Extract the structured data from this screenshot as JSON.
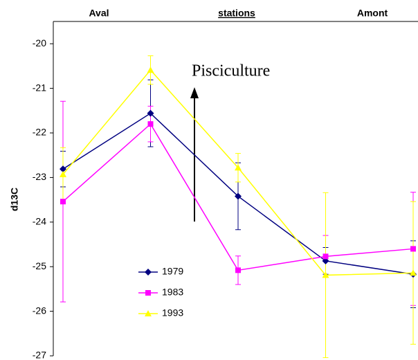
{
  "chart_data": {
    "type": "line",
    "y_label": "d13C",
    "annotations": [
      "Aval",
      "stations",
      "Amont",
      "Pisciculture"
    ],
    "categories": [
      null,
      null,
      null,
      null,
      null
    ],
    "ylim": [
      -27,
      -19.5
    ],
    "yticks": [
      -27,
      -26,
      -25,
      -24,
      -23,
      -22,
      -21,
      -20
    ],
    "series": [
      {
        "name": "1979",
        "color": "#000080",
        "marker": "diamond",
        "values": [
          -22.81,
          -21.56,
          -23.42,
          -24.87,
          -25.17
        ],
        "errors": [
          0.4,
          0.75,
          0.75,
          0.3,
          0.75
        ]
      },
      {
        "name": "1983",
        "color": "#ff00ff",
        "marker": "square",
        "values": [
          -23.54,
          -21.8,
          -25.08,
          -24.77,
          -24.6
        ],
        "errors": [
          2.25,
          0.4,
          0.32,
          0.47,
          1.27
        ]
      },
      {
        "name": "1993",
        "color": "#ffff00",
        "marker": "triangle",
        "values": [
          -22.93,
          -20.59,
          -22.78,
          -25.19,
          -25.14
        ],
        "errors": [
          0.6,
          0.32,
          0.32,
          1.85,
          1.6
        ]
      }
    ]
  }
}
